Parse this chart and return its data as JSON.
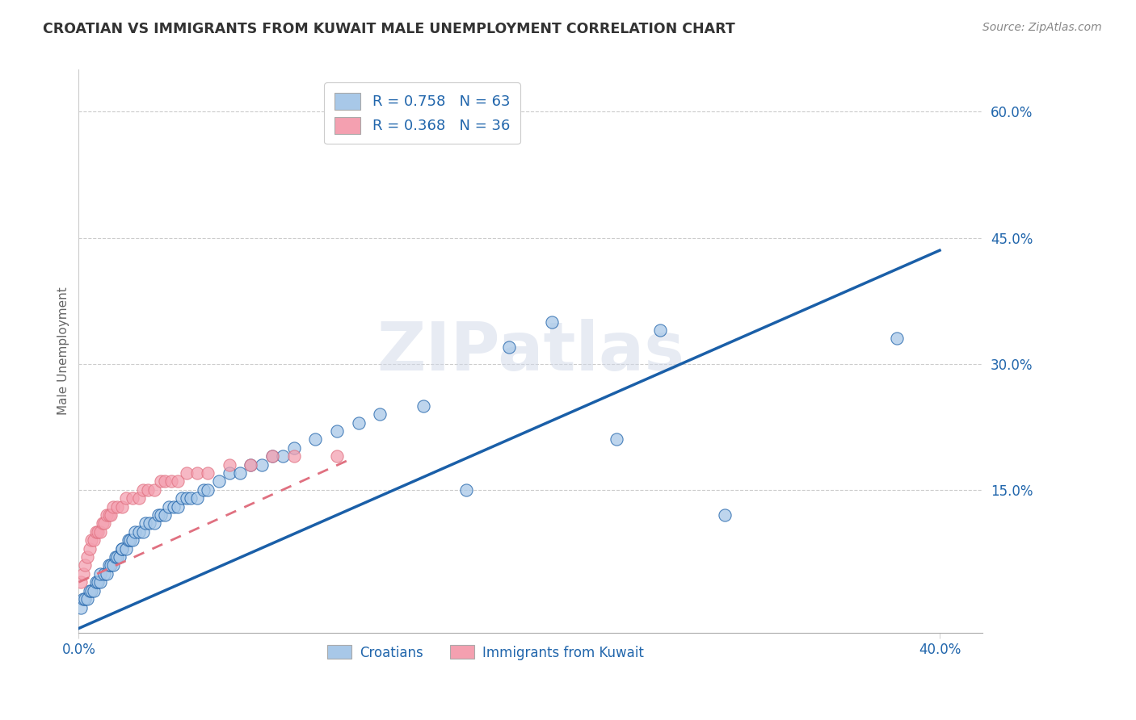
{
  "title": "CROATIAN VS IMMIGRANTS FROM KUWAIT MALE UNEMPLOYMENT CORRELATION CHART",
  "source": "Source: ZipAtlas.com",
  "ylabel": "Male Unemployment",
  "xlim": [
    0.0,
    0.42
  ],
  "ylim": [
    -0.02,
    0.65
  ],
  "xticks": [
    0.0,
    0.4
  ],
  "xtick_labels": [
    "0.0%",
    "40.0%"
  ],
  "yticks": [
    0.15,
    0.3,
    0.45,
    0.6
  ],
  "ytick_labels": [
    "15.0%",
    "30.0%",
    "45.0%",
    "60.0%"
  ],
  "croatian_R": 0.758,
  "croatian_N": 63,
  "kuwait_R": 0.368,
  "kuwait_N": 36,
  "blue_color": "#a8c8e8",
  "pink_color": "#f4a0b0",
  "blue_line_color": "#1a5fa8",
  "pink_line_color": "#e07080",
  "label_color": "#2166ac",
  "text_color": "#333333",
  "watermark": "ZIPatlas",
  "blue_line_x0": 0.0,
  "blue_line_y0": -0.015,
  "blue_line_x1": 0.4,
  "blue_line_y1": 0.435,
  "pink_line_x0": 0.0,
  "pink_line_x1": 0.125,
  "pink_line_y0": 0.04,
  "pink_line_y1": 0.185,
  "croatian_x": [
    0.001,
    0.002,
    0.003,
    0.004,
    0.005,
    0.006,
    0.007,
    0.008,
    0.009,
    0.01,
    0.01,
    0.012,
    0.013,
    0.014,
    0.015,
    0.016,
    0.017,
    0.018,
    0.019,
    0.02,
    0.02,
    0.022,
    0.023,
    0.024,
    0.025,
    0.026,
    0.028,
    0.03,
    0.031,
    0.033,
    0.035,
    0.037,
    0.038,
    0.04,
    0.042,
    0.044,
    0.046,
    0.048,
    0.05,
    0.052,
    0.055,
    0.058,
    0.06,
    0.065,
    0.07,
    0.075,
    0.08,
    0.085,
    0.09,
    0.095,
    0.1,
    0.11,
    0.12,
    0.13,
    0.14,
    0.16,
    0.18,
    0.2,
    0.22,
    0.25,
    0.27,
    0.3,
    0.38
  ],
  "croatian_y": [
    0.01,
    0.02,
    0.02,
    0.02,
    0.03,
    0.03,
    0.03,
    0.04,
    0.04,
    0.04,
    0.05,
    0.05,
    0.05,
    0.06,
    0.06,
    0.06,
    0.07,
    0.07,
    0.07,
    0.08,
    0.08,
    0.08,
    0.09,
    0.09,
    0.09,
    0.1,
    0.1,
    0.1,
    0.11,
    0.11,
    0.11,
    0.12,
    0.12,
    0.12,
    0.13,
    0.13,
    0.13,
    0.14,
    0.14,
    0.14,
    0.14,
    0.15,
    0.15,
    0.16,
    0.17,
    0.17,
    0.18,
    0.18,
    0.19,
    0.19,
    0.2,
    0.21,
    0.22,
    0.23,
    0.24,
    0.25,
    0.15,
    0.32,
    0.35,
    0.21,
    0.34,
    0.12,
    0.33
  ],
  "kuwait_x": [
    0.001,
    0.002,
    0.003,
    0.004,
    0.005,
    0.006,
    0.007,
    0.008,
    0.009,
    0.01,
    0.011,
    0.012,
    0.013,
    0.014,
    0.015,
    0.016,
    0.018,
    0.02,
    0.022,
    0.025,
    0.028,
    0.03,
    0.032,
    0.035,
    0.038,
    0.04,
    0.043,
    0.046,
    0.05,
    0.055,
    0.06,
    0.07,
    0.08,
    0.09,
    0.1,
    0.12
  ],
  "kuwait_y": [
    0.04,
    0.05,
    0.06,
    0.07,
    0.08,
    0.09,
    0.09,
    0.1,
    0.1,
    0.1,
    0.11,
    0.11,
    0.12,
    0.12,
    0.12,
    0.13,
    0.13,
    0.13,
    0.14,
    0.14,
    0.14,
    0.15,
    0.15,
    0.15,
    0.16,
    0.16,
    0.16,
    0.16,
    0.17,
    0.17,
    0.17,
    0.18,
    0.18,
    0.19,
    0.19,
    0.19
  ]
}
